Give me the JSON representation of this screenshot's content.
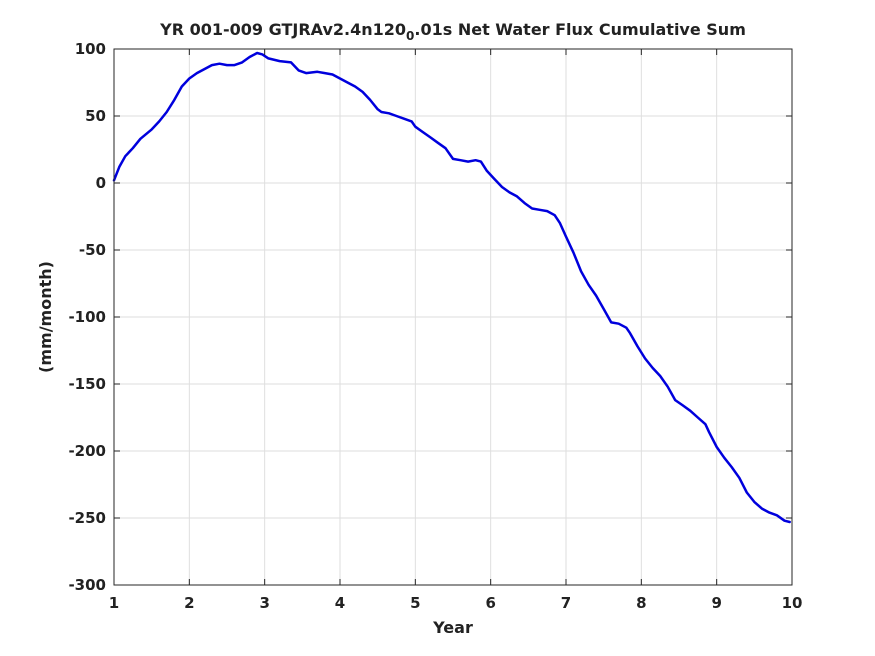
{
  "chart_data": {
    "type": "line",
    "title_main": "YR 001-009 GTJRAv2.4n120",
    "title_subscript": "0",
    "title_tail": ".01s Net Water Flux Cumulative Sum",
    "xlabel": "Year",
    "ylabel": "(mm/month)",
    "xlim": [
      1,
      10
    ],
    "ylim": [
      -300,
      100
    ],
    "xticks": [
      1,
      2,
      3,
      4,
      5,
      6,
      7,
      8,
      9,
      10
    ],
    "yticks": [
      100,
      50,
      0,
      -50,
      -100,
      -150,
      -200,
      -250,
      -300
    ],
    "xtick_labels": [
      "1",
      "2",
      "3",
      "4",
      "5",
      "6",
      "7",
      "8",
      "9",
      "10"
    ],
    "ytick_labels": [
      "100",
      "50",
      "0",
      "-50",
      "-100",
      "-150",
      "-200",
      "-250",
      "-300"
    ],
    "grid": true,
    "line_color": "#0000dd",
    "series": [
      {
        "x": [
          1.0,
          1.07,
          1.15,
          1.25,
          1.35,
          1.5,
          1.6,
          1.7,
          1.8,
          1.9,
          2.0,
          2.1,
          2.2,
          2.3,
          2.4,
          2.5,
          2.6,
          2.7,
          2.8,
          2.9,
          2.97,
          3.05,
          3.2,
          3.35,
          3.45,
          3.55,
          3.7,
          3.8,
          3.9,
          4.0,
          4.1,
          4.2,
          4.3,
          4.4,
          4.5,
          4.55,
          4.65,
          4.75,
          4.85,
          4.95,
          5.0,
          5.1,
          5.2,
          5.3,
          5.4,
          5.5,
          5.6,
          5.7,
          5.8,
          5.87,
          5.95,
          6.05,
          6.15,
          6.25,
          6.35,
          6.45,
          6.55,
          6.65,
          6.75,
          6.85,
          6.92,
          7.0,
          7.1,
          7.2,
          7.3,
          7.4,
          7.5,
          7.6,
          7.7,
          7.8,
          7.85,
          7.95,
          8.05,
          8.15,
          8.25,
          8.35,
          8.45,
          8.55,
          8.65,
          8.75,
          8.85,
          8.9,
          9.0,
          9.1,
          9.2,
          9.3,
          9.4,
          9.5,
          9.6,
          9.7,
          9.8,
          9.9,
          9.97
        ],
        "y": [
          2,
          12,
          20,
          26,
          33,
          40,
          46,
          53,
          62,
          72,
          78,
          82,
          85,
          88,
          89,
          88,
          88,
          90,
          94,
          97,
          96,
          93,
          91,
          90,
          84,
          82,
          83,
          82,
          81,
          78,
          75,
          72,
          68,
          62,
          55,
          53,
          52,
          50,
          48,
          46,
          42,
          38,
          34,
          30,
          26,
          18,
          17,
          16,
          17,
          16,
          9,
          3,
          -3,
          -7,
          -10,
          -15,
          -19,
          -20,
          -21,
          -24,
          -30,
          -40,
          -52,
          -66,
          -76,
          -84,
          -94,
          -104,
          -105,
          -108,
          -112,
          -122,
          -131,
          -138,
          -144,
          -152,
          -162,
          -166,
          -170,
          -175,
          -180,
          -186,
          -197,
          -205,
          -212,
          -220,
          -231,
          -238,
          -243,
          -246,
          -248,
          -252,
          -253
        ]
      }
    ]
  }
}
